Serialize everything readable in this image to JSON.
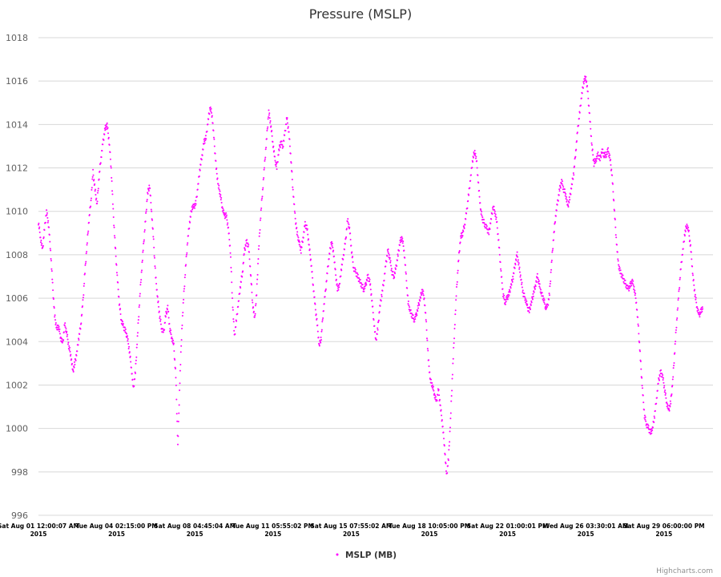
{
  "chart_data": {
    "type": "scatter",
    "title": "Pressure (MSLP)",
    "ylim": [
      996,
      1018
    ],
    "yticks": [
      996,
      998,
      1000,
      1002,
      1004,
      1006,
      1008,
      1010,
      1012,
      1014,
      1016,
      1018
    ],
    "grid": true,
    "legend_position": "bottom-center",
    "xticks": [
      {
        "line1": "Sat Aug 01 12:00:07 AM",
        "line2": "2015"
      },
      {
        "line1": "Tue Aug 04 02:15:00 PM",
        "line2": "2015"
      },
      {
        "line1": "Sat Aug 08 04:45:04 AM",
        "line2": "2015"
      },
      {
        "line1": "Tue Aug 11 05:55:02 PM",
        "line2": "2015"
      },
      {
        "line1": "Sat Aug 15 07:55:02 AM",
        "line2": "2015"
      },
      {
        "line1": "Tue Aug 18 10:05:00 PM",
        "line2": "2015"
      },
      {
        "line1": "Sat Aug 22 01:00:01 PM",
        "line2": "2015"
      },
      {
        "line1": "Wed Aug 26 03:30:01 AM",
        "line2": "2015"
      },
      {
        "line1": "Sat Aug 29 06:00:00 PM",
        "line2": "2015"
      }
    ],
    "series": [
      {
        "name": "MSLP (MB)",
        "color": "#ff00ff",
        "x_index_range": [
          0,
          8.5
        ],
        "values": [
          1009.5,
          1008.8,
          1008.2,
          1009.2,
          1010.0,
          1009.4,
          1008.2,
          1006.6,
          1005.2,
          1004.6,
          1004.7,
          1004.2,
          1003.9,
          1004.8,
          1004.4,
          1003.8,
          1003.4,
          1002.6,
          1003.0,
          1003.5,
          1004.2,
          1004.8,
          1005.8,
          1007.2,
          1008.4,
          1009.6,
          1010.5,
          1011.8,
          1011.0,
          1010.3,
          1011.6,
          1012.5,
          1013.2,
          1013.8,
          1014.0,
          1013.2,
          1012.0,
          1010.0,
          1008.4,
          1007.0,
          1005.8,
          1005.0,
          1004.7,
          1004.5,
          1004.2,
          1003.6,
          1002.8,
          1001.8,
          1002.6,
          1004.2,
          1005.8,
          1007.2,
          1008.4,
          1009.6,
          1010.8,
          1011.2,
          1010.0,
          1008.6,
          1007.0,
          1006.0,
          1005.2,
          1004.6,
          1004.4,
          1005.2,
          1005.6,
          1004.6,
          1004.2,
          1003.8,
          1002.4,
          999.2,
          1002.2,
          1004.6,
          1006.2,
          1007.6,
          1008.8,
          1009.6,
          1010.2,
          1010.2,
          1010.4,
          1011.2,
          1012.0,
          1012.6,
          1013.2,
          1013.4,
          1014.2,
          1014.8,
          1014.4,
          1013.2,
          1012.0,
          1011.2,
          1010.8,
          1010.2,
          1009.8,
          1009.8,
          1009.2,
          1008.2,
          1006.0,
          1004.2,
          1005.0,
          1005.8,
          1006.6,
          1007.2,
          1008.2,
          1008.6,
          1008.4,
          1007.2,
          1005.8,
          1005.0,
          1006.2,
          1008.2,
          1009.8,
          1011.0,
          1012.2,
          1013.4,
          1014.6,
          1014.0,
          1013.2,
          1012.4,
          1012.0,
          1012.8,
          1013.2,
          1013.0,
          1013.6,
          1014.3,
          1013.6,
          1012.4,
          1011.0,
          1009.8,
          1009.0,
          1008.6,
          1008.2,
          1008.8,
          1009.4,
          1009.2,
          1008.4,
          1007.6,
          1006.6,
          1005.6,
          1004.8,
          1003.8,
          1004.2,
          1005.4,
          1006.2,
          1007.2,
          1008.0,
          1008.6,
          1008.2,
          1007.2,
          1006.4,
          1006.6,
          1007.4,
          1008.0,
          1008.6,
          1009.6,
          1009.2,
          1008.2,
          1007.4,
          1007.2,
          1007.0,
          1006.8,
          1006.6,
          1006.4,
          1006.6,
          1007.0,
          1006.8,
          1006.0,
          1005.0,
          1004.0,
          1004.6,
          1005.6,
          1006.2,
          1006.8,
          1007.6,
          1008.2,
          1007.8,
          1007.2,
          1007.0,
          1007.4,
          1008.0,
          1008.6,
          1008.8,
          1008.2,
          1007.0,
          1005.8,
          1005.4,
          1005.2,
          1005.0,
          1005.2,
          1005.6,
          1006.0,
          1006.4,
          1006.0,
          1004.8,
          1003.2,
          1002.2,
          1002.0,
          1001.6,
          1001.2,
          1001.8,
          1001.0,
          1000.2,
          999.2,
          997.8,
          998.6,
          1000.4,
          1002.6,
          1004.6,
          1006.4,
          1007.8,
          1008.8,
          1009.0,
          1009.4,
          1010.0,
          1010.8,
          1011.6,
          1012.4,
          1012.8,
          1012.2,
          1011.0,
          1010.0,
          1009.6,
          1009.4,
          1009.2,
          1009.0,
          1009.6,
          1010.2,
          1010.0,
          1009.4,
          1008.4,
          1007.2,
          1006.2,
          1005.8,
          1006.0,
          1006.2,
          1006.6,
          1007.0,
          1007.6,
          1008.0,
          1007.4,
          1006.8,
          1006.2,
          1006.0,
          1005.6,
          1005.4,
          1005.8,
          1006.2,
          1006.6,
          1007.0,
          1006.6,
          1006.2,
          1006.0,
          1005.6,
          1005.6,
          1006.2,
          1007.6,
          1008.8,
          1009.8,
          1010.4,
          1011.0,
          1011.4,
          1011.0,
          1010.8,
          1010.2,
          1010.6,
          1011.2,
          1011.8,
          1012.8,
          1013.8,
          1014.6,
          1015.4,
          1016.0,
          1016.2,
          1015.4,
          1014.2,
          1013.0,
          1012.2,
          1012.4,
          1012.6,
          1012.4,
          1012.8,
          1012.6,
          1012.6,
          1012.8,
          1012.4,
          1011.6,
          1010.2,
          1008.8,
          1007.6,
          1007.2,
          1007.0,
          1006.8,
          1006.6,
          1006.4,
          1006.6,
          1006.8,
          1006.4,
          1005.8,
          1004.6,
          1003.2,
          1001.8,
          1000.6,
          1000.2,
          1000.0,
          999.8,
          1000.0,
          1000.6,
          1001.4,
          1002.2,
          1002.6,
          1002.4,
          1001.8,
          1001.2,
          1000.8,
          1001.2,
          1002.2,
          1003.6,
          1005.0,
          1006.2,
          1007.4,
          1008.2,
          1009.0,
          1009.4,
          1009.0,
          1008.2,
          1007.0,
          1006.2,
          1005.6,
          1005.2,
          1005.4,
          1005.6
        ]
      }
    ],
    "credits": "Highcharts.com"
  }
}
